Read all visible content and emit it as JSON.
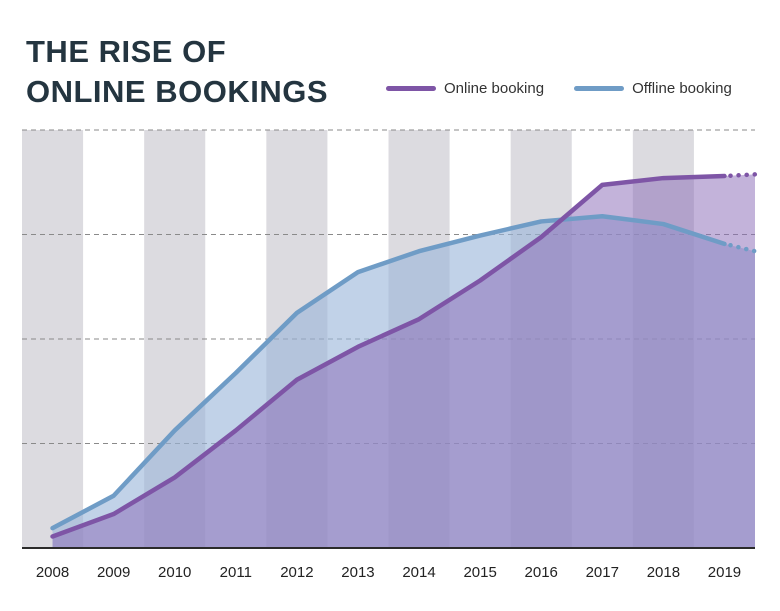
{
  "header": {
    "title_line1": "THE RISE OF",
    "title_line2": "ONLINE BOOKINGS"
  },
  "colors": {
    "online": "#7e55a6",
    "offline": "#6f9cc6",
    "band": "#dcdbe0"
  },
  "chart_data": {
    "type": "area",
    "categories": [
      "2008",
      "2009",
      "2010",
      "2011",
      "2012",
      "2013",
      "2014",
      "2015",
      "2016",
      "2017",
      "2018",
      "2019"
    ],
    "series": [
      {
        "name": "Online booking",
        "values": [
          0.22,
          0.65,
          1.35,
          2.25,
          3.22,
          3.85,
          4.38,
          5.12,
          5.95,
          6.95,
          7.08,
          7.12
        ],
        "projected_end": 7.15
      },
      {
        "name": "Offline booking",
        "values": [
          0.38,
          1.0,
          2.25,
          3.35,
          4.5,
          5.28,
          5.68,
          5.98,
          6.25,
          6.35,
          6.2,
          5.82
        ],
        "projected_end": 5.68
      }
    ],
    "ylim": [
      0,
      8
    ],
    "grid": true,
    "legend": "top-right"
  }
}
